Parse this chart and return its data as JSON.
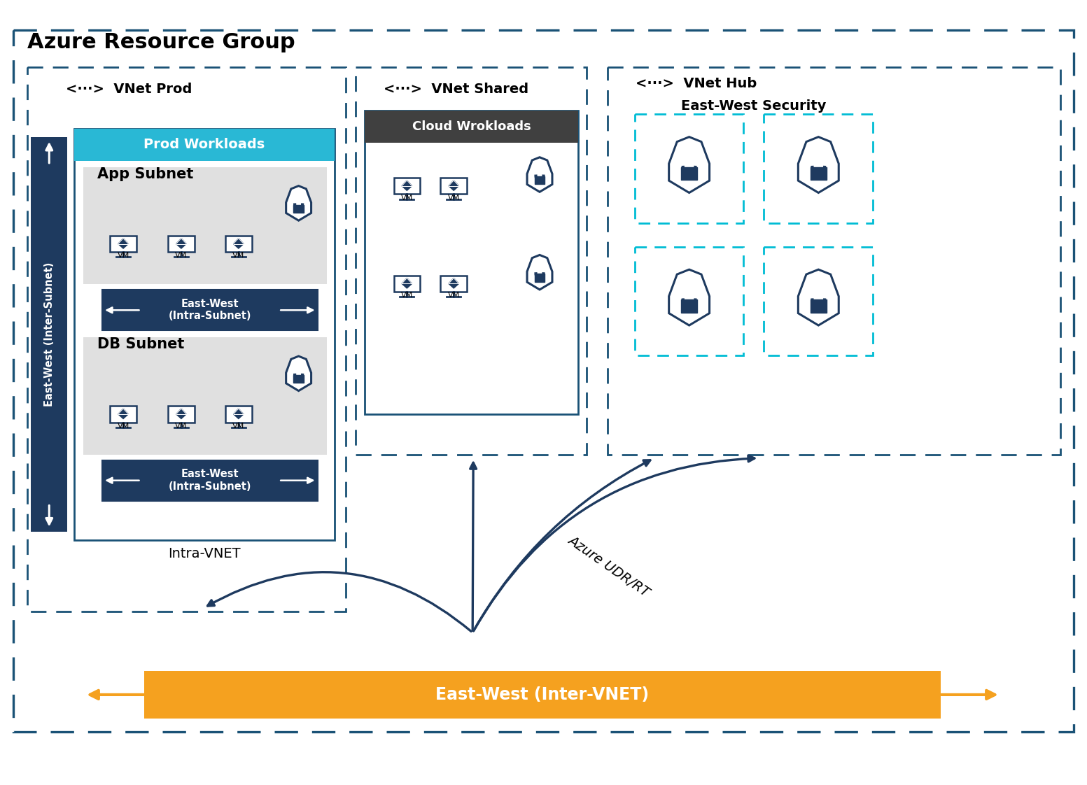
{
  "bg": "#ffffff",
  "blue_dark": "#1e3a5f",
  "blue_mid": "#1a5276",
  "cyan_header": "#29b8d5",
  "dark_gray": "#404040",
  "orange": "#f5a11f",
  "light_gray": "#e0e0e0",
  "cyan_dashed": "#00bcd4",
  "white": "#ffffff",
  "azure_rg": "Azure Resource Group",
  "lbl_vnet_prod": "VNet Prod",
  "lbl_vnet_shared": "VNet Shared",
  "lbl_vnet_hub": "VNet Hub",
  "lbl_hub_sub": "East-West Security",
  "lbl_prod_wl": "Prod Workloads",
  "lbl_cloud_wl": "Cloud Wrokloads",
  "lbl_app": "App Subnet",
  "lbl_db": "DB Subnet",
  "lbl_ew_intra": "East-West\n(Intra-Subnet)",
  "lbl_ew_side": "East-West (Inter-Subnet)",
  "lbl_ew_inter": "East-West (Inter-VNET)",
  "lbl_intra_vnet": "Intra-VNET",
  "lbl_udr": "Azure UDR/RT",
  "lbl_vm": "VM"
}
